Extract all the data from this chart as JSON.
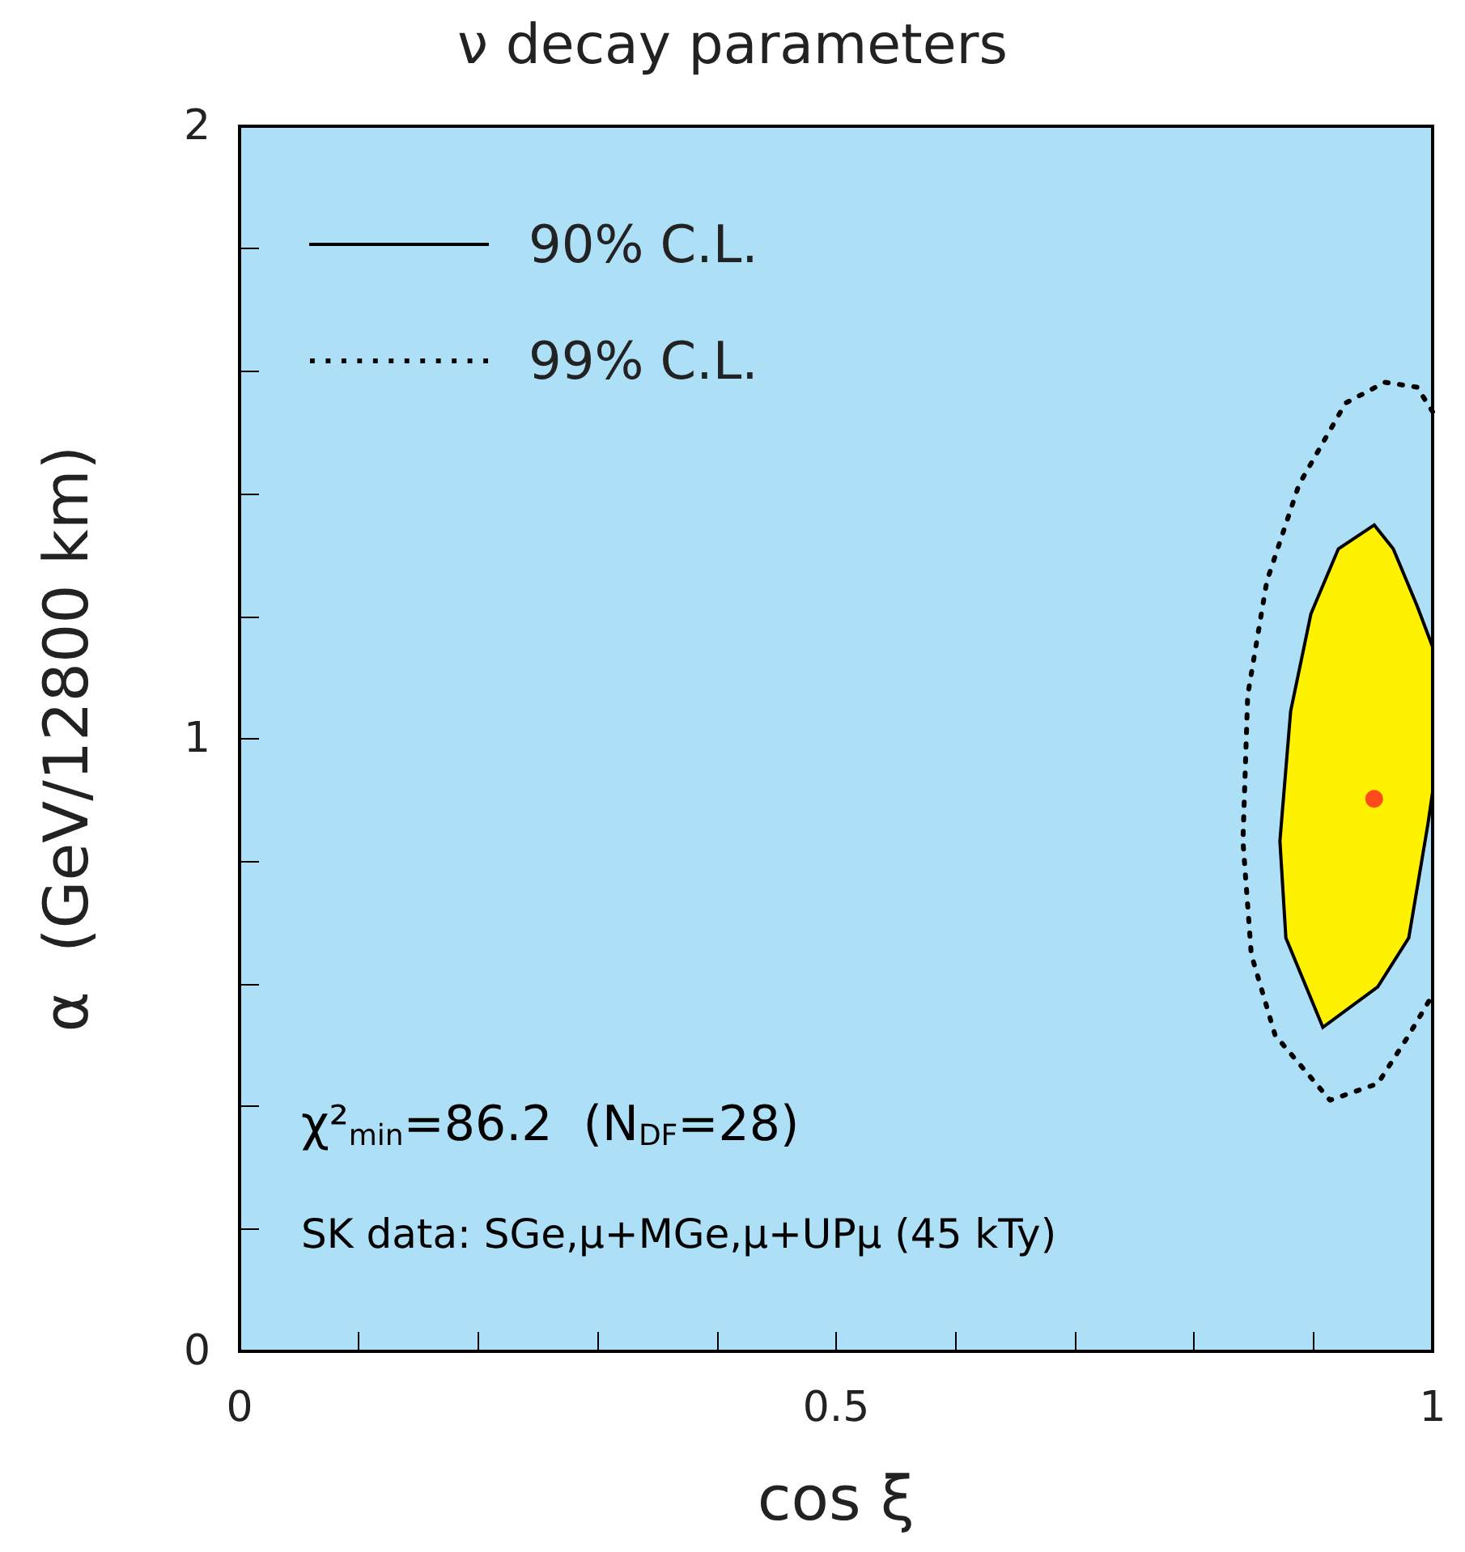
{
  "chart_data": {
    "type": "line",
    "title": "ν decay parameters",
    "xlabel": "cos ξ",
    "ylabel": "α  (GeV/12800 km)",
    "xlim": [
      0,
      1
    ],
    "xticks": [
      0,
      {
        "value": 0.1,
        "label": null
      },
      {
        "value": 0.2,
        "label": null
      },
      {
        "value": 0.3,
        "label": null
      },
      {
        "value": 0.4,
        "label": null
      },
      0.5,
      {
        "value": 0.6,
        "label": null
      },
      {
        "value": 0.7,
        "label": null
      },
      {
        "value": 0.8,
        "label": null
      },
      {
        "value": 0.9,
        "label": null
      },
      1
    ],
    "ylim": [
      0,
      2
    ],
    "yticks": [
      0,
      {
        "value": 0.2,
        "label": null
      },
      {
        "value": 0.4,
        "label": null
      },
      {
        "value": 0.6,
        "label": null
      },
      {
        "value": 0.8,
        "label": null
      },
      1,
      {
        "value": 1.2,
        "label": null
      },
      {
        "value": 1.4,
        "label": null
      },
      {
        "value": 1.6,
        "label": null
      },
      {
        "value": 1.8,
        "label": null
      },
      2
    ],
    "grid": false,
    "legend": "top left",
    "series": [
      {
        "name": "90% C.L.",
        "type": "area",
        "color": "#fff200",
        "line_style": "solid",
        "x": [
          0.951,
          0.921,
          0.898,
          0.881,
          0.872,
          0.877,
          0.908,
          0.954,
          0.98,
          0.996,
          1.0,
          1.0,
          0.987,
          0.967,
          0.951
        ],
        "values": [
          1.349,
          1.31,
          1.204,
          1.045,
          0.833,
          0.675,
          0.529,
          0.595,
          0.675,
          0.86,
          0.913,
          1.15,
          1.217,
          1.31,
          1.349
        ]
      },
      {
        "name": "99% C.L.",
        "color": "#000000",
        "line_style": "dotted",
        "x": [
          1.0,
          0.987,
          0.96,
          0.927,
          0.888,
          0.861,
          0.845,
          0.841,
          0.848,
          0.868,
          0.914,
          0.954,
          0.98,
          1.0
        ],
        "values": [
          1.534,
          1.574,
          1.582,
          1.548,
          1.415,
          1.257,
          1.071,
          0.833,
          0.648,
          0.516,
          0.41,
          0.437,
          0.516,
          0.582
        ]
      },
      {
        "type": "scatter",
        "color": "#ff2020",
        "marker": "circle",
        "x": [
          0.951
        ],
        "values": [
          0.902
        ]
      }
    ],
    "annotations": [
      "χ²$_{min}$=86.2  (N$_{DF}$=28)",
      "SK data: SGe,μ+MGe,μ+UPμ (45 kTy)"
    ]
  }
}
